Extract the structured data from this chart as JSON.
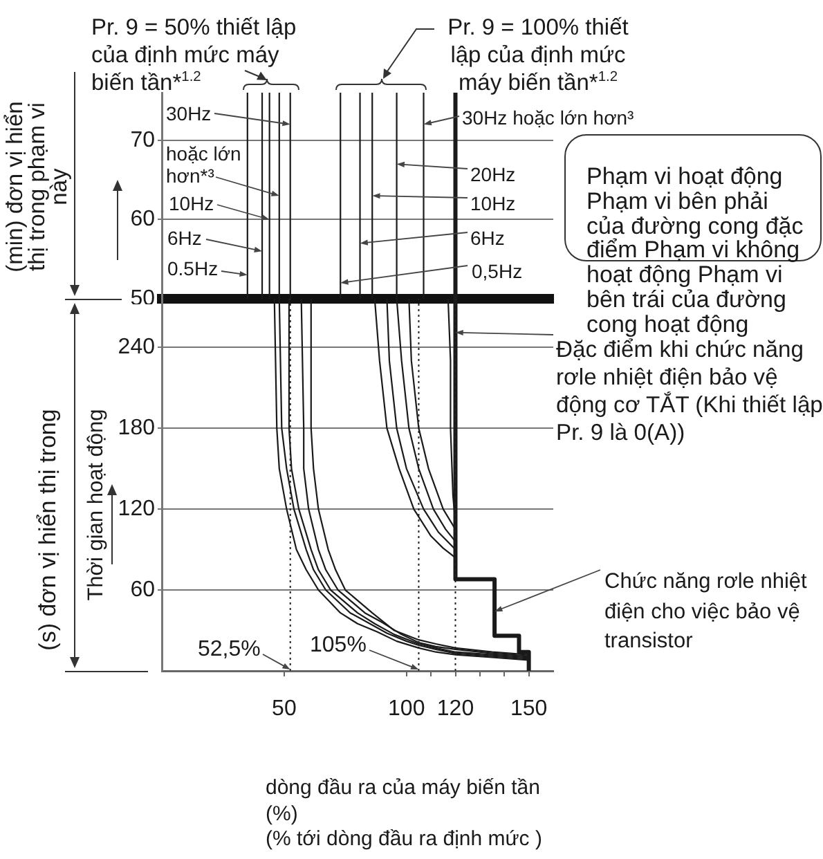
{
  "chart_data": [
    {
      "type": "line",
      "ylabel": "(min) đơn vị hiển thị trong phạm vi này",
      "xlim": [
        0,
        160
      ],
      "ylim": [
        50,
        76
      ],
      "yticks": [
        50,
        60,
        70
      ],
      "grid": "y",
      "tick_labels": "y",
      "marker": "none",
      "series": [
        {
          "color": "#1a1a1a",
          "x": [
            35,
            35
          ],
          "values": [
            50,
            76
          ]
        },
        {
          "color": "#1a1a1a",
          "x": [
            41,
            41
          ],
          "values": [
            50,
            76
          ]
        },
        {
          "color": "#1a1a1a",
          "x": [
            44,
            44
          ],
          "values": [
            50,
            76
          ]
        },
        {
          "color": "#1a1a1a",
          "x": [
            48,
            48
          ],
          "values": [
            50,
            76
          ]
        },
        {
          "color": "#1a1a1a",
          "x": [
            52.5,
            52.5
          ],
          "values": [
            50,
            76
          ]
        },
        {
          "color": "#1a1a1a",
          "x": [
            73,
            73
          ],
          "values": [
            50,
            76
          ]
        },
        {
          "color": "#1a1a1a",
          "x": [
            81,
            81
          ],
          "values": [
            50,
            76
          ]
        },
        {
          "color": "#1a1a1a",
          "x": [
            86,
            86
          ],
          "values": [
            50,
            76
          ]
        },
        {
          "color": "#1a1a1a",
          "x": [
            96,
            96
          ],
          "values": [
            50,
            76
          ]
        },
        {
          "color": "#1a1a1a",
          "x": [
            107,
            107
          ],
          "values": [
            50,
            76
          ]
        },
        {
          "color": "#1a1a1a",
          "x": [
            120,
            120
          ],
          "values": [
            50,
            76
          ]
        }
      ],
      "annotations": [
        "Pr. 9 = 50% thiết lập của định mức máy biến tần*$^{1.2}$",
        "Pr. 9 = 100% thiết lập của định mức máy biến tần*$^{1.2}$",
        {
          "text": "30Hz",
          "x": 52.5,
          "y": 72
        },
        {
          "text": "hoặc lớn hơn*³",
          "x": 48,
          "y": 63
        },
        {
          "text": "10Hz",
          "x": 44,
          "y": 60
        },
        {
          "text": "6Hz",
          "x": 41,
          "y": 56
        },
        {
          "text": "0.5Hz",
          "x": 35,
          "y": 53
        },
        {
          "text": "30Hz hoặc lớn hơn³",
          "x": 107,
          "y": 72
        },
        {
          "text": "20Hz",
          "x": 96,
          "y": 67
        },
        {
          "text": "10Hz",
          "x": 86,
          "y": 63
        },
        {
          "text": "6Hz",
          "x": 81,
          "y": 57
        },
        {
          "text": "0,5Hz",
          "x": 73,
          "y": 52
        },
        "Phạm vi hoạt động Phạm vi bên phải của đường cong đặc điểm Phạm vi không hoạt động Phạm vi bên trái của đường cong hoạt động"
      ]
    },
    {
      "type": "line",
      "ylabel": "Thời gian hoạt động",
      "xlabel": "dòng đầu ra của máy biến tần (%)",
      "xlim": [
        0,
        160
      ],
      "xticks": [
        50,
        100,
        {
          "value": 110,
          "label": null
        },
        120,
        {
          "value": 130,
          "label": null
        },
        {
          "value": 140,
          "label": null
        },
        150
      ],
      "ylim": [
        0,
        276
      ],
      "yticks": [
        60,
        120,
        180,
        240
      ],
      "grid": "y",
      "marker": "none",
      "series": [
        {
          "color": "#1a1a1a",
          "x": [
            46,
            47,
            48,
            51,
            55,
            59,
            64,
            73,
            80,
            88,
            96,
            105,
            112,
            120,
            135,
            150
          ],
          "values": [
            276,
            180,
            150,
            120,
            90,
            75,
            60,
            43,
            35,
            29,
            22,
            17,
            14,
            12,
            10,
            8
          ]
        },
        {
          "color": "#1a1a1a",
          "x": [
            48,
            49,
            51,
            54,
            59,
            62,
            67,
            77,
            84,
            92,
            100,
            105,
            112,
            120,
            135,
            150
          ],
          "values": [
            276,
            180,
            150,
            120,
            90,
            75,
            60,
            43,
            36,
            28,
            22,
            19,
            16,
            13,
            11,
            9
          ]
        },
        {
          "color": "#1a1a1a",
          "x": [
            52,
            52,
            53,
            56,
            61,
            64,
            69,
            80,
            87,
            95,
            105,
            112,
            120,
            135,
            150
          ],
          "values": [
            276,
            180,
            150,
            120,
            90,
            75,
            60,
            43,
            35,
            27,
            20,
            17,
            14,
            12,
            10
          ]
        },
        {
          "color": "#1a1a1a",
          "x": [
            57,
            58,
            58,
            60,
            64,
            67,
            72,
            83,
            90,
            98,
            105,
            112,
            120,
            135,
            150
          ],
          "values": [
            276,
            180,
            150,
            120,
            90,
            75,
            60,
            43,
            36,
            27,
            21,
            18,
            16,
            13,
            11
          ]
        },
        {
          "color": "#1a1a1a",
          "x": [
            61,
            61,
            62,
            64,
            68,
            71,
            75,
            86,
            95,
            105,
            112,
            120,
            135,
            150
          ],
          "values": [
            276,
            180,
            150,
            120,
            90,
            75,
            60,
            43,
            30,
            23,
            20,
            17,
            14,
            12
          ]
        },
        {
          "color": "#1a1a1a",
          "x": [
            87,
            89,
            92,
            97,
            103,
            110,
            115,
            120
          ],
          "values": [
            276,
            230,
            180,
            150,
            120,
            100,
            91,
            84
          ]
        },
        {
          "color": "#1a1a1a",
          "x": [
            92,
            93,
            96,
            100,
            107,
            113,
            120
          ],
          "values": [
            276,
            230,
            180,
            150,
            120,
            103,
            90
          ]
        },
        {
          "color": "#1a1a1a",
          "x": [
            96,
            98,
            101,
            105,
            111,
            116,
            120
          ],
          "values": [
            276,
            230,
            180,
            150,
            120,
            105,
            96
          ]
        },
        {
          "color": "#1a1a1a",
          "x": [
            101,
            102,
            105,
            109,
            115,
            120
          ],
          "values": [
            276,
            230,
            180,
            150,
            120,
            105
          ]
        },
        {
          "color": "#1a1a1a",
          "x": [
            117,
            118,
            118,
            119,
            120
          ],
          "values": [
            276,
            230,
            180,
            130,
            110
          ]
        },
        {
          "color": "#1a1a1a",
          "x": [
            120,
            120,
            136,
            136,
            146,
            146,
            150,
            150
          ],
          "values": [
            276,
            68,
            68,
            26,
            26,
            14,
            14,
            0
          ]
        }
      ],
      "ref_lines": [
        {
          "axis": "x",
          "value": 52.5,
          "label": "52,5%",
          "line_style": "dotted",
          "color": "#222222"
        },
        {
          "axis": "x",
          "value": 105,
          "label": "105%",
          "line_style": "dotted",
          "color": "#222222"
        },
        {
          "axis": "x",
          "value": 120,
          "line_style": "dotted",
          "color": "#222222"
        }
      ],
      "annotations": [
        "(s) đơn vị hiển thị trong",
        {
          "text": "Đặc điểm khi chức năng rơle nhiệt điện bảo vệ động cơ TẮT (Khi thiết lập Pr. 9 là 0(A))",
          "x": 120,
          "y": 251
        },
        {
          "text": "Chức năng rơle nhiệt điện cho việc bảo vệ transistor",
          "x": 136,
          "y": 44
        },
        "(% tới dòng đầu ra định mức )"
      ]
    }
  ]
}
